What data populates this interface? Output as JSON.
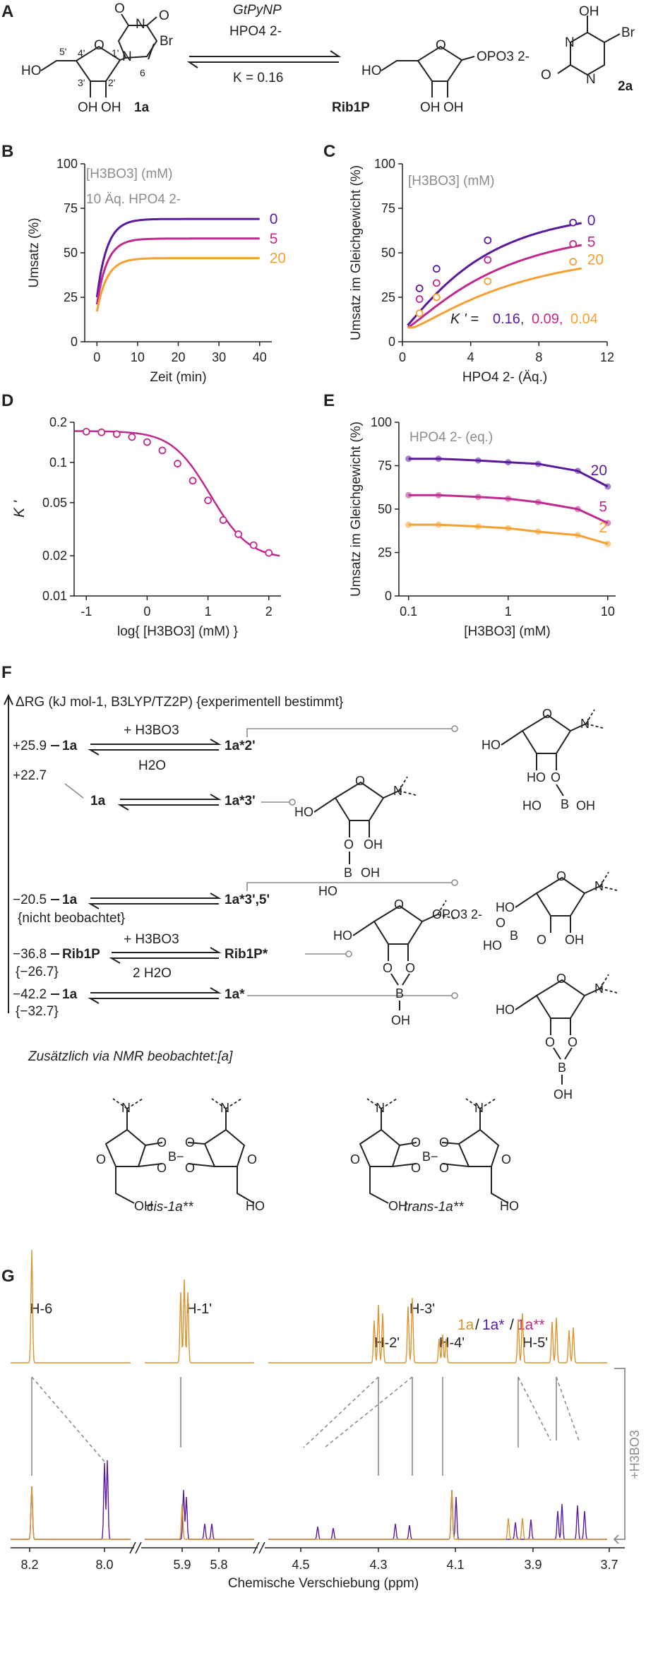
{
  "colors": {
    "purple": "#5a1a9e",
    "magenta": "#c02a8e",
    "orange": "#f5a030",
    "gray": "#8c8c8c",
    "ink": "#222222",
    "orange_spec": "#d89430"
  },
  "panel_letters": {
    "A": "A",
    "B": "B",
    "C": "C",
    "D": "D",
    "E": "E",
    "F": "F",
    "G": "G"
  },
  "scheme_a": {
    "enzyme": "GtPyNP",
    "reagent": "HPO4 2-",
    "equilibrium": "K = 0.16",
    "left_label": "1a",
    "middle_label": "Rib1P",
    "right_label": "2a",
    "atom_labels": {
      "c5": "5'",
      "c4": "4'",
      "c1": "1'",
      "c3": "3'",
      "c2": "2'",
      "c6": "6",
      "br": "Br",
      "o": "O",
      "oh": "OH",
      "ho": "HO",
      "n": "N",
      "opo3": "OPO3 2-"
    }
  },
  "chart_data": [
    {
      "panel": "B",
      "type": "line",
      "xlabel": "Zeit (min)",
      "ylabel": "Umsatz (%)",
      "xlim": [
        -3,
        43
      ],
      "ylim": [
        0,
        100
      ],
      "xticks": [
        0,
        10,
        20,
        30,
        40
      ],
      "yticks": [
        0,
        25,
        50,
        75,
        100
      ],
      "annotation": "[H3BO3] (mM)",
      "annotation2": "10 Äq. HPO4 2-",
      "series": [
        {
          "name": "0",
          "plateau": 69,
          "start": 25,
          "color": "purple"
        },
        {
          "name": "5",
          "plateau": 58,
          "start": 21,
          "color": "magenta"
        },
        {
          "name": "20",
          "plateau": 47,
          "start": 17,
          "color": "orange"
        }
      ]
    },
    {
      "panel": "C",
      "type": "scatter",
      "xlabel": "HPO4 2- (Äq.)",
      "ylabel": "Umsatz im Gleichgewicht (%)",
      "xlim": [
        0,
        12
      ],
      "ylim": [
        0,
        100
      ],
      "xticks": [
        0,
        4,
        8,
        12
      ],
      "yticks": [
        0,
        25,
        50,
        75,
        100
      ],
      "annotation": "[H3BO3] (mM)",
      "kprime_label": "K ' =",
      "kprime_values": [
        "0.16",
        "0.09",
        "0.04"
      ],
      "series": [
        {
          "name": "0",
          "color": "purple",
          "x": [
            1,
            2,
            5,
            10
          ],
          "y": [
            30,
            41,
            57,
            67
          ],
          "fit_k": 0.16
        },
        {
          "name": "5",
          "color": "magenta",
          "x": [
            1,
            2,
            5,
            10
          ],
          "y": [
            24,
            33,
            46,
            55
          ],
          "fit_k": 0.09
        },
        {
          "name": "20",
          "color": "orange",
          "x": [
            1,
            2,
            5,
            10
          ],
          "y": [
            16,
            25,
            34,
            45
          ],
          "fit_k": 0.04
        }
      ]
    },
    {
      "panel": "D",
      "type": "scatter",
      "xlabel": "log{ [H3BO3] (mM) }",
      "ylabel": "K '",
      "scale_y": "log",
      "xlim": [
        -1.2,
        2.2
      ],
      "ylim": [
        0.01,
        0.2
      ],
      "xticks": [
        "-1",
        "0",
        "1",
        "2"
      ],
      "yticks": [
        "0.01",
        "0.02",
        "0.05",
        "0.1",
        "0.2"
      ],
      "color": "magenta",
      "x": [
        -1,
        -0.75,
        -0.5,
        -0.25,
        0,
        0.25,
        0.5,
        0.75,
        1,
        1.25,
        1.5,
        1.75,
        2
      ],
      "y": [
        0.17,
        0.168,
        0.163,
        0.155,
        0.142,
        0.123,
        0.098,
        0.073,
        0.052,
        0.037,
        0.029,
        0.024,
        0.021
      ]
    },
    {
      "panel": "E",
      "type": "scatter",
      "xlabel": "[H3BO3] (mM)",
      "ylabel": "Umsatz im Gleichgewicht (%)",
      "scale_x": "log",
      "xlim": [
        0.08,
        12
      ],
      "ylim": [
        0,
        100
      ],
      "xticks": [
        "0.1",
        "1",
        "10"
      ],
      "yticks": [
        0,
        25,
        50,
        75,
        100
      ],
      "annotation": "HPO4 2- (eq.)",
      "series": [
        {
          "name": "20",
          "color": "purple",
          "x": [
            0.1,
            0.2,
            0.5,
            1,
            2,
            5,
            10
          ],
          "y": [
            79,
            79,
            78,
            77,
            76,
            72,
            63
          ]
        },
        {
          "name": "5",
          "color": "magenta",
          "x": [
            0.1,
            0.2,
            0.5,
            1,
            2,
            5,
            10
          ],
          "y": [
            58,
            58,
            57,
            56,
            54,
            50,
            42
          ]
        },
        {
          "name": "2",
          "color": "orange",
          "x": [
            0.1,
            0.2,
            0.5,
            1,
            2,
            5,
            10
          ],
          "y": [
            41,
            41,
            40,
            39,
            37,
            35,
            30
          ]
        }
      ]
    },
    {
      "panel": "G",
      "type": "line",
      "xlabel": "Chemische Verschiebung (ppm)",
      "xtick_labels": [
        "8.2",
        "8.0",
        "5.9",
        "5.8",
        "4.5",
        "4.3",
        "4.1",
        "3.9",
        "3.7"
      ],
      "legend": [
        "1a",
        "/",
        "1a*",
        "/",
        "1a**"
      ],
      "peak_labels": [
        "H-6",
        "H-1'",
        "H-3'",
        "H-2'",
        "H-4'",
        "H-5'"
      ],
      "side_label": "+H3BO3"
    }
  ],
  "scheme_f": {
    "header": "ΔRG (kJ mol-1, B3LYP/TZ2P) {experimentell bestimmt}",
    "rows": [
      {
        "energy": "+25.9",
        "left": "1a",
        "top": "+ H3BO3",
        "bottom": "H2O",
        "right": "1a*2'"
      },
      {
        "energy": "+22.7",
        "left": "1a",
        "right": "1a*3'"
      },
      {
        "energy": "−20.5",
        "left": "1a",
        "note": "{nicht beobachtet}",
        "right": "1a*3',5'"
      },
      {
        "energy": "−36.8",
        "exp": "{−26.7}",
        "left": "Rib1P",
        "top": "+ H3BO3",
        "bottom": "2 H2O",
        "right": "Rib1P*"
      },
      {
        "energy": "−42.2",
        "exp": "{−32.7}",
        "left": "1a",
        "right": "1a*"
      }
    ],
    "footnote": "Zusätzlich via NMR beobachtet:[a]",
    "cis_label": "cis-1a**",
    "trans_label": "trans-1a**",
    "atoms": {
      "b": "B",
      "b_minus": "B−",
      "oh": "OH",
      "ho": "HO",
      "o": "O",
      "n": "N",
      "opo3": "OPO3 2-"
    }
  }
}
